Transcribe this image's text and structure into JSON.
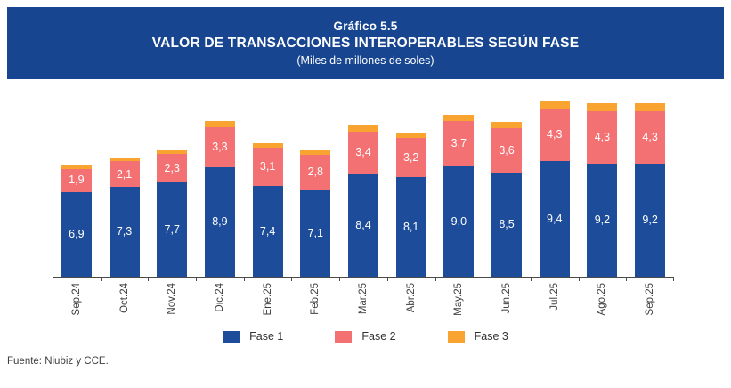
{
  "header": {
    "chart_number": "Gráfico 5.5",
    "title": "VALOR DE TRANSACCIONES INTEROPERABLES SEGÚN FASE",
    "subtitle": "(Miles de millones de soles)",
    "banner_color": "#17458F"
  },
  "chart_data": {
    "type": "bar",
    "stacked": true,
    "title": "VALOR DE TRANSACCIONES INTEROPERABLES SEGÚN FASE",
    "units": "Miles de millones de soles",
    "categories": [
      "Sep.24",
      "Oct.24",
      "Nov.24",
      "Dic.24",
      "Ene.25",
      "Feb.25",
      "Mar.25",
      "Abr.25",
      "May.25",
      "Jun.25",
      "Jul.25",
      "Ago.25",
      "Sep.25"
    ],
    "series": [
      {
        "name": "Fase 1",
        "color": "#1C4C9A",
        "show_labels": true,
        "values": [
          6.9,
          7.3,
          7.7,
          8.9,
          7.4,
          7.1,
          8.4,
          8.1,
          9.0,
          8.5,
          9.4,
          9.2,
          9.2
        ]
      },
      {
        "name": "Fase 2",
        "color": "#F47173",
        "show_labels": true,
        "values": [
          1.9,
          2.1,
          2.3,
          3.3,
          3.1,
          2.8,
          3.4,
          3.2,
          3.7,
          3.6,
          4.3,
          4.3,
          4.3
        ]
      },
      {
        "name": "Fase 3",
        "color": "#F9A431",
        "show_labels": false,
        "values": [
          0.3,
          0.3,
          0.4,
          0.5,
          0.4,
          0.4,
          0.5,
          0.4,
          0.5,
          0.5,
          0.6,
          0.6,
          0.6
        ]
      }
    ],
    "legend": [
      "Fase 1",
      "Fase 2",
      "Fase 3"
    ],
    "legend_position": "bottom",
    "grid": false,
    "y_axis_visible": false,
    "ylim": [
      0,
      15
    ],
    "decimal_separator": ","
  },
  "footer": {
    "source": "Fuente: Niubiz y CCE."
  }
}
